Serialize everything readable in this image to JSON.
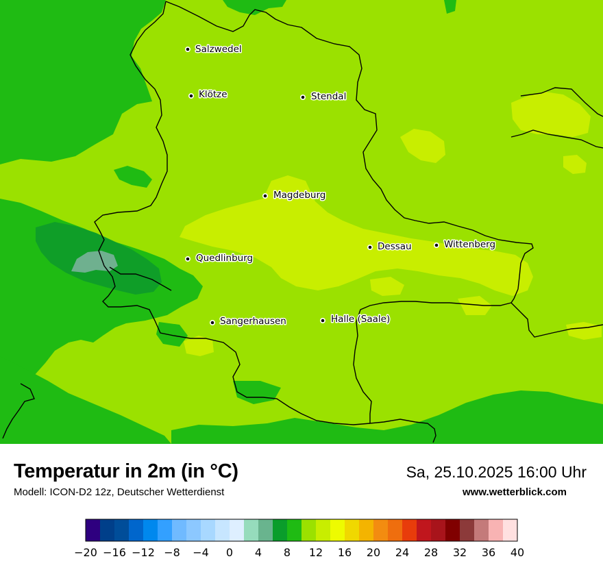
{
  "map": {
    "colors": {
      "lime_light": "#c8ee00",
      "lime": "#9be100",
      "green": "#1fbb13",
      "dark_green": "#0f9e28",
      "teal_green": "#6fb08f",
      "border": "#000000"
    },
    "cities": [
      {
        "name": "Salzwedel"
      },
      {
        "name": "Klötze"
      },
      {
        "name": "Stendal"
      },
      {
        "name": "Magdeburg"
      },
      {
        "name": "Dessau"
      },
      {
        "name": "Wittenberg"
      },
      {
        "name": "Quedlinburg"
      },
      {
        "name": "Sangerhausen"
      },
      {
        "name": "Halle (Saale)"
      }
    ]
  },
  "header": {
    "title": "Temperatur in 2m (in °C)",
    "subtitle": "Modell: ICON-D2 12z, Deutscher Wetterdienst",
    "datetime": "Sa, 25.10.2025 16:00 Uhr",
    "website": "www.wetterblick.com"
  },
  "legend": {
    "min": -20,
    "max": 40,
    "step": 2,
    "tick_labels": [
      "−20",
      "−16",
      "−12",
      "−8",
      "−4",
      "0",
      "4",
      "8",
      "12",
      "16",
      "20",
      "24",
      "28",
      "32",
      "36",
      "40"
    ],
    "colors": [
      "#2e007f",
      "#003f8a",
      "#004d99",
      "#0066cc",
      "#0088ee",
      "#33a0ff",
      "#70baff",
      "#8cc8ff",
      "#a8d8ff",
      "#c7e6ff",
      "#deefff",
      "#96dcbc",
      "#69b48e",
      "#0a9d2b",
      "#1fbb13",
      "#9be100",
      "#c8ee00",
      "#eefb00",
      "#f0d800",
      "#f4b400",
      "#f38c10",
      "#ef6e0e",
      "#e83c0b",
      "#c0161d",
      "#a8141b",
      "#800000",
      "#8c3a3a",
      "#c47a7a",
      "#f8b3b3",
      "#ffe0e0"
    ]
  }
}
